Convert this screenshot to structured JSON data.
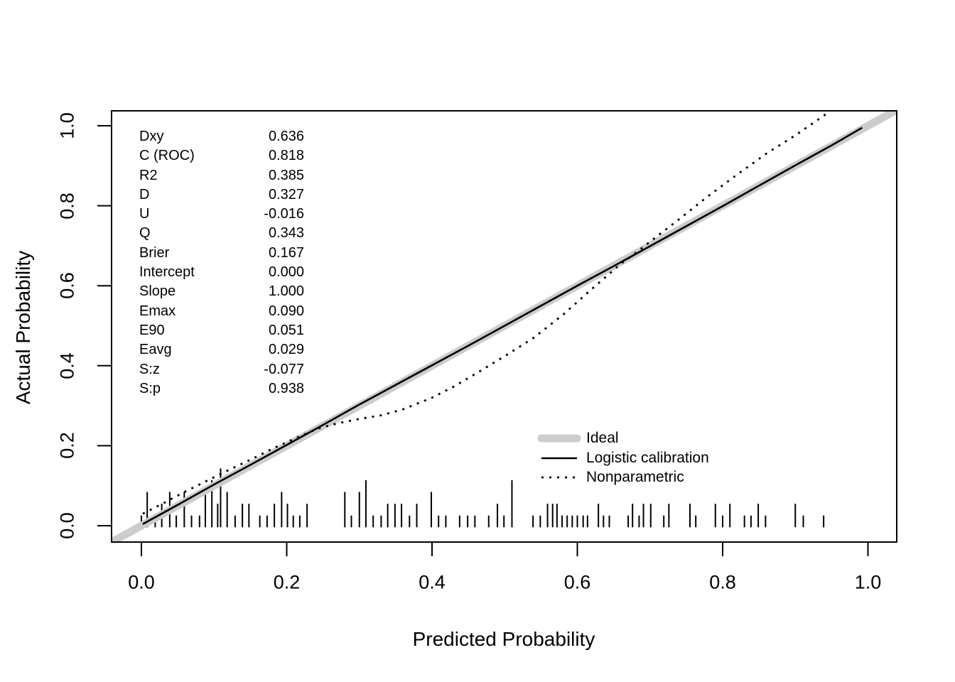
{
  "figure": {
    "background_color": "#ffffff",
    "text_color": "#000000"
  },
  "chart_data": {
    "type": "line",
    "title": "",
    "xlabel": "Predicted Probability",
    "ylabel": "Actual Probability",
    "xlim": [
      -0.042,
      1.04
    ],
    "ylim": [
      -0.042,
      1.04
    ],
    "grid": false,
    "legend_position": "lower-right-inside",
    "x_ticks": [
      {
        "value": 0.0,
        "label": "0.0"
      },
      {
        "value": 0.2,
        "label": "0.2"
      },
      {
        "value": 0.4,
        "label": "0.4"
      },
      {
        "value": 0.6,
        "label": "0.6"
      },
      {
        "value": 0.8,
        "label": "0.8"
      },
      {
        "value": 1.0,
        "label": "1.0"
      }
    ],
    "y_ticks": [
      {
        "value": 0.0,
        "label": "0.0"
      },
      {
        "value": 0.2,
        "label": "0.2"
      },
      {
        "value": 0.4,
        "label": "0.4"
      },
      {
        "value": 0.6,
        "label": "0.6"
      },
      {
        "value": 0.8,
        "label": "0.8"
      },
      {
        "value": 1.0,
        "label": "1.0"
      }
    ],
    "series": [
      {
        "name": "Ideal",
        "style": "solid",
        "color": "#cccccc",
        "width": 11,
        "linecap": "round",
        "dash": null,
        "points": [
          [
            -0.042,
            -0.042
          ],
          [
            1.04,
            1.04
          ]
        ]
      },
      {
        "name": "Logistic calibration",
        "style": "solid",
        "color": "#000000",
        "width": 2.6,
        "linecap": "butt",
        "dash": null,
        "points": [
          [
            0.002,
            0.004
          ],
          [
            0.05,
            0.052
          ],
          [
            0.1,
            0.103
          ],
          [
            0.15,
            0.152
          ],
          [
            0.2,
            0.202
          ],
          [
            0.25,
            0.252
          ],
          [
            0.3,
            0.303
          ],
          [
            0.35,
            0.352
          ],
          [
            0.4,
            0.401
          ],
          [
            0.45,
            0.45
          ],
          [
            0.5,
            0.5
          ],
          [
            0.55,
            0.55
          ],
          [
            0.6,
            0.6
          ],
          [
            0.65,
            0.649
          ],
          [
            0.7,
            0.699
          ],
          [
            0.75,
            0.749
          ],
          [
            0.8,
            0.799
          ],
          [
            0.85,
            0.85
          ],
          [
            0.9,
            0.901
          ],
          [
            0.95,
            0.951
          ],
          [
            0.992,
            0.995
          ]
        ]
      },
      {
        "name": "Nonparametric",
        "style": "dotted",
        "color": "#000000",
        "width": 2.8,
        "linecap": "butt",
        "dash": "3 8",
        "points": [
          [
            0.002,
            0.03
          ],
          [
            0.03,
            0.056
          ],
          [
            0.06,
            0.085
          ],
          [
            0.09,
            0.112
          ],
          [
            0.12,
            0.139
          ],
          [
            0.15,
            0.165
          ],
          [
            0.18,
            0.192
          ],
          [
            0.21,
            0.217
          ],
          [
            0.243,
            0.243
          ],
          [
            0.27,
            0.256
          ],
          [
            0.3,
            0.267
          ],
          [
            0.33,
            0.276
          ],
          [
            0.36,
            0.291
          ],
          [
            0.4,
            0.32
          ],
          [
            0.43,
            0.348
          ],
          [
            0.46,
            0.38
          ],
          [
            0.5,
            0.424
          ],
          [
            0.54,
            0.47
          ],
          [
            0.58,
            0.527
          ],
          [
            0.62,
            0.592
          ],
          [
            0.66,
            0.655
          ],
          [
            0.676,
            0.676
          ],
          [
            0.7,
            0.71
          ],
          [
            0.74,
            0.766
          ],
          [
            0.78,
            0.824
          ],
          [
            0.82,
            0.878
          ],
          [
            0.86,
            0.93
          ],
          [
            0.9,
            0.976
          ],
          [
            0.943,
            1.03
          ]
        ]
      }
    ],
    "rug": {
      "baseline_y": -0.004,
      "unit_height": 0.0295,
      "line_width": 2,
      "color": "#000000",
      "ticks": [
        {
          "x": 0.0,
          "count": 1
        },
        {
          "x": 0.008,
          "count": 3
        },
        {
          "x": 0.019,
          "count": 1
        },
        {
          "x": 0.028,
          "count": 2
        },
        {
          "x": 0.039,
          "count": 3
        },
        {
          "x": 0.048,
          "count": 1
        },
        {
          "x": 0.059,
          "count": 3
        },
        {
          "x": 0.069,
          "count": 1
        },
        {
          "x": 0.08,
          "count": 1
        },
        {
          "x": 0.088,
          "count": 3
        },
        {
          "x": 0.097,
          "count": 4
        },
        {
          "x": 0.105,
          "count": 2
        },
        {
          "x": 0.109,
          "count": 5
        },
        {
          "x": 0.118,
          "count": 3
        },
        {
          "x": 0.129,
          "count": 1
        },
        {
          "x": 0.139,
          "count": 2
        },
        {
          "x": 0.148,
          "count": 2
        },
        {
          "x": 0.163,
          "count": 1
        },
        {
          "x": 0.173,
          "count": 1
        },
        {
          "x": 0.183,
          "count": 2
        },
        {
          "x": 0.193,
          "count": 3
        },
        {
          "x": 0.201,
          "count": 2
        },
        {
          "x": 0.209,
          "count": 1
        },
        {
          "x": 0.218,
          "count": 1
        },
        {
          "x": 0.228,
          "count": 2
        },
        {
          "x": 0.28,
          "count": 3
        },
        {
          "x": 0.289,
          "count": 1
        },
        {
          "x": 0.3,
          "count": 3
        },
        {
          "x": 0.309,
          "count": 4
        },
        {
          "x": 0.319,
          "count": 1
        },
        {
          "x": 0.33,
          "count": 1
        },
        {
          "x": 0.339,
          "count": 2
        },
        {
          "x": 0.349,
          "count": 2
        },
        {
          "x": 0.358,
          "count": 2
        },
        {
          "x": 0.369,
          "count": 1
        },
        {
          "x": 0.379,
          "count": 2
        },
        {
          "x": 0.399,
          "count": 3
        },
        {
          "x": 0.409,
          "count": 1
        },
        {
          "x": 0.419,
          "count": 1
        },
        {
          "x": 0.438,
          "count": 1
        },
        {
          "x": 0.449,
          "count": 1
        },
        {
          "x": 0.459,
          "count": 1
        },
        {
          "x": 0.478,
          "count": 1
        },
        {
          "x": 0.49,
          "count": 2
        },
        {
          "x": 0.499,
          "count": 1
        },
        {
          "x": 0.51,
          "count": 4
        },
        {
          "x": 0.539,
          "count": 1
        },
        {
          "x": 0.549,
          "count": 1
        },
        {
          "x": 0.559,
          "count": 2
        },
        {
          "x": 0.566,
          "count": 2
        },
        {
          "x": 0.572,
          "count": 2
        },
        {
          "x": 0.579,
          "count": 1
        },
        {
          "x": 0.586,
          "count": 1
        },
        {
          "x": 0.593,
          "count": 1
        },
        {
          "x": 0.6,
          "count": 1
        },
        {
          "x": 0.608,
          "count": 1
        },
        {
          "x": 0.614,
          "count": 1
        },
        {
          "x": 0.629,
          "count": 2
        },
        {
          "x": 0.636,
          "count": 1
        },
        {
          "x": 0.644,
          "count": 1
        },
        {
          "x": 0.67,
          "count": 1
        },
        {
          "x": 0.676,
          "count": 2
        },
        {
          "x": 0.685,
          "count": 1
        },
        {
          "x": 0.691,
          "count": 2
        },
        {
          "x": 0.701,
          "count": 2
        },
        {
          "x": 0.719,
          "count": 1
        },
        {
          "x": 0.726,
          "count": 2
        },
        {
          "x": 0.755,
          "count": 2
        },
        {
          "x": 0.763,
          "count": 1
        },
        {
          "x": 0.79,
          "count": 2
        },
        {
          "x": 0.8,
          "count": 1
        },
        {
          "x": 0.81,
          "count": 2
        },
        {
          "x": 0.83,
          "count": 1
        },
        {
          "x": 0.839,
          "count": 1
        },
        {
          "x": 0.849,
          "count": 2
        },
        {
          "x": 0.859,
          "count": 1
        },
        {
          "x": 0.9,
          "count": 2
        },
        {
          "x": 0.911,
          "count": 1
        },
        {
          "x": 0.939,
          "count": 1
        }
      ]
    },
    "stats": {
      "rows": [
        {
          "label": "Dxy",
          "value": "0.636"
        },
        {
          "label": "C (ROC)",
          "value": "0.818"
        },
        {
          "label": "R2",
          "value": "0.385"
        },
        {
          "label": "D",
          "value": "0.327"
        },
        {
          "label": "U",
          "value": "-0.016"
        },
        {
          "label": "Q",
          "value": "0.343"
        },
        {
          "label": "Brier",
          "value": "0.167"
        },
        {
          "label": "Intercept",
          "value": "0.000"
        },
        {
          "label": "Slope",
          "value": "1.000"
        },
        {
          "label": "Emax",
          "value": "0.090"
        },
        {
          "label": "E90",
          "value": "0.051"
        },
        {
          "label": "Eavg",
          "value": "0.029"
        },
        {
          "label": "S:z",
          "value": "-0.077"
        },
        {
          "label": "S:p",
          "value": "0.938"
        }
      ]
    },
    "legend": {
      "entries": [
        {
          "label": "Ideal"
        },
        {
          "label": "Logistic calibration"
        },
        {
          "label": "Nonparametric"
        }
      ]
    }
  }
}
